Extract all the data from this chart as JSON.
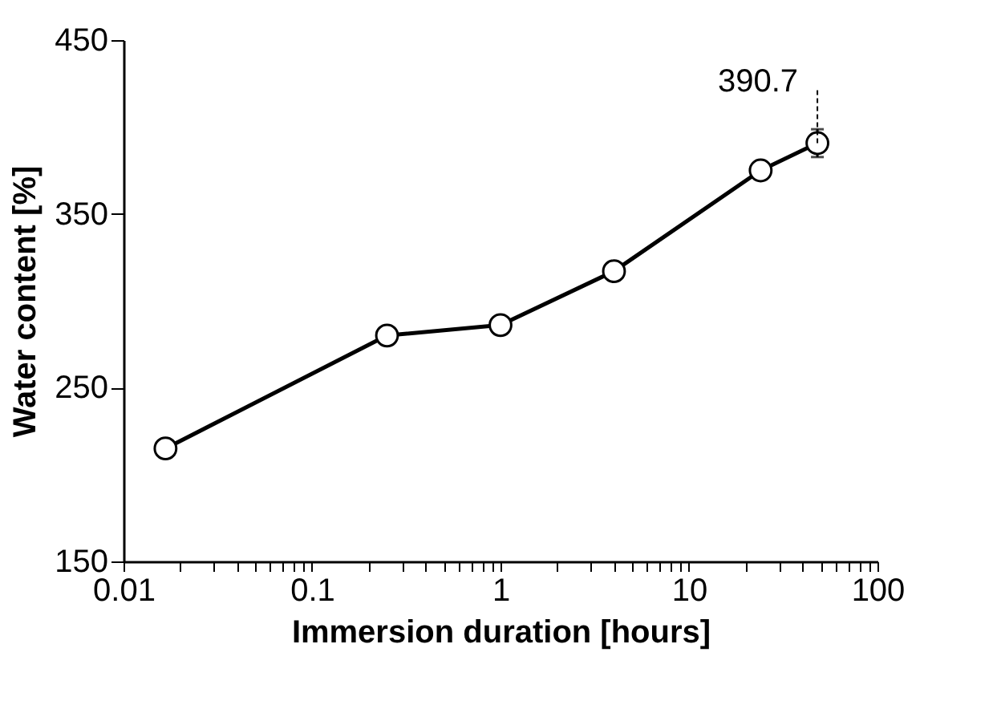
{
  "chart_data": {
    "type": "line",
    "xlabel": "Immersion duration [hours]",
    "ylabel": "Water content [%]",
    "x": [
      0.0167,
      0.25,
      1,
      4,
      24,
      48
    ],
    "series": [
      {
        "color": "#000000",
        "values": [
          215,
          280,
          286,
          317,
          375,
          390.7
        ],
        "errors": [
          null,
          null,
          null,
          null,
          null,
          8
        ]
      }
    ],
    "log": "x",
    "xlim": [
      0.01,
      100
    ],
    "ylim": [
      150,
      450
    ],
    "xticks": [
      0.01,
      {
        "value": 0.02,
        "label": null
      },
      {
        "value": 0.03,
        "label": null
      },
      {
        "value": 0.04,
        "label": null
      },
      {
        "value": 0.05,
        "label": null
      },
      {
        "value": 0.06,
        "label": null
      },
      {
        "value": 0.07,
        "label": null
      },
      {
        "value": 0.08,
        "label": null
      },
      {
        "value": 0.09,
        "label": null
      },
      0.1,
      {
        "value": 0.2,
        "label": null
      },
      {
        "value": 0.3,
        "label": null
      },
      {
        "value": 0.4,
        "label": null
      },
      {
        "value": 0.5,
        "label": null
      },
      {
        "value": 0.6,
        "label": null
      },
      {
        "value": 0.7,
        "label": null
      },
      {
        "value": 0.8,
        "label": null
      },
      {
        "value": 0.9,
        "label": null
      },
      1,
      {
        "value": 2,
        "label": null
      },
      {
        "value": 3,
        "label": null
      },
      {
        "value": 4,
        "label": null
      },
      {
        "value": 5,
        "label": null
      },
      {
        "value": 6,
        "label": null
      },
      {
        "value": 7,
        "label": null
      },
      {
        "value": 8,
        "label": null
      },
      {
        "value": 9,
        "label": null
      },
      10,
      {
        "value": 20,
        "label": null
      },
      {
        "value": 30,
        "label": null
      },
      {
        "value": 40,
        "label": null
      },
      {
        "value": 50,
        "label": null
      },
      {
        "value": 60,
        "label": null
      },
      {
        "value": 70,
        "label": null
      },
      {
        "value": 80,
        "label": null
      },
      {
        "value": 90,
        "label": null
      },
      100
    ],
    "yticks": [
      150,
      250,
      350,
      450
    ],
    "annotations": [
      {
        "text": "390.7",
        "x": 48,
        "y": 390.7
      }
    ],
    "marker": "circle",
    "line_style": "solid",
    "grid": false,
    "legend": false
  }
}
